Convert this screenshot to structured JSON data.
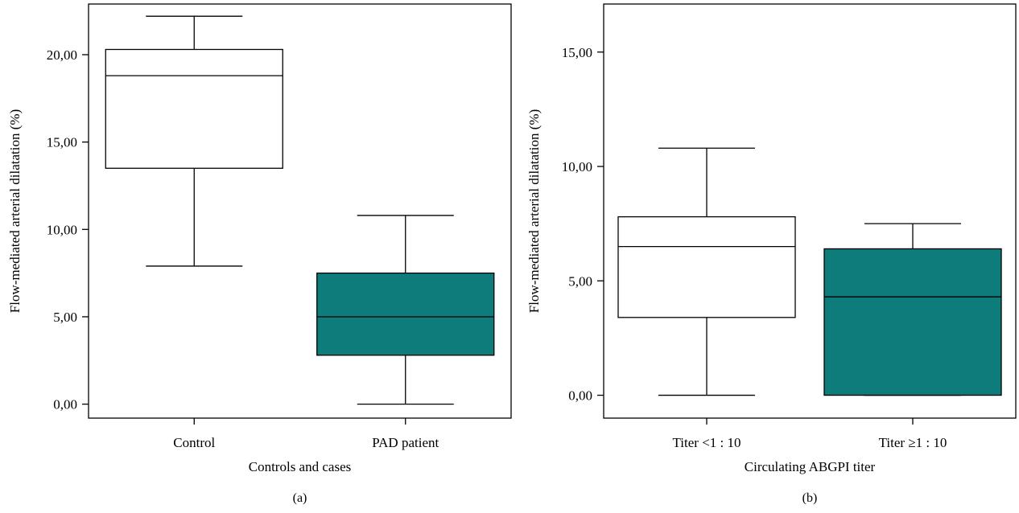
{
  "colors": {
    "box_empty": "#ffffff",
    "box_filled": "#0e7c7b",
    "line": "#000000"
  },
  "chart_data": [
    {
      "type": "boxplot",
      "panel_label": "(a)",
      "xlabel": "Controls and cases",
      "ylabel": "Flow-mediated arterial dilatation (%)",
      "ylim": [
        -0.8,
        22.9
      ],
      "yticks": [
        0,
        5,
        10,
        15,
        20
      ],
      "ytick_labels": [
        "0,00",
        "5,00",
        "10,00",
        "15,00",
        "20,00"
      ],
      "grid": false,
      "categories": [
        "Control",
        "PAD patient"
      ],
      "boxes": [
        {
          "category": "Control",
          "min": 7.9,
          "q1": 13.5,
          "median": 18.8,
          "q3": 20.3,
          "max": 22.2,
          "fill": "#ffffff"
        },
        {
          "category": "PAD patient",
          "min": 0.0,
          "q1": 2.8,
          "median": 5.0,
          "q3": 7.5,
          "max": 10.8,
          "fill": "#0e7c7b"
        }
      ]
    },
    {
      "type": "boxplot",
      "panel_label": "(b)",
      "xlabel": "Circulating ABGPI titer",
      "ylabel": "Flow-mediated arterial dilatation (%)",
      "ylim": [
        -1.0,
        17.1
      ],
      "yticks": [
        0,
        5,
        10,
        15
      ],
      "ytick_labels": [
        "0,00",
        "5,00",
        "10,00",
        "15,00"
      ],
      "grid": false,
      "categories": [
        "Titer <1 : 10",
        "Titer ≥1 : 10"
      ],
      "boxes": [
        {
          "category": "Titer <1 : 10",
          "min": 0.0,
          "q1": 3.4,
          "median": 6.5,
          "q3": 7.8,
          "max": 10.8,
          "fill": "#ffffff"
        },
        {
          "category": "Titer ≥1 : 10",
          "min": 0.0,
          "q1": 0.0,
          "median": 4.3,
          "q3": 6.4,
          "max": 7.5,
          "fill": "#0e7c7b"
        }
      ]
    }
  ]
}
